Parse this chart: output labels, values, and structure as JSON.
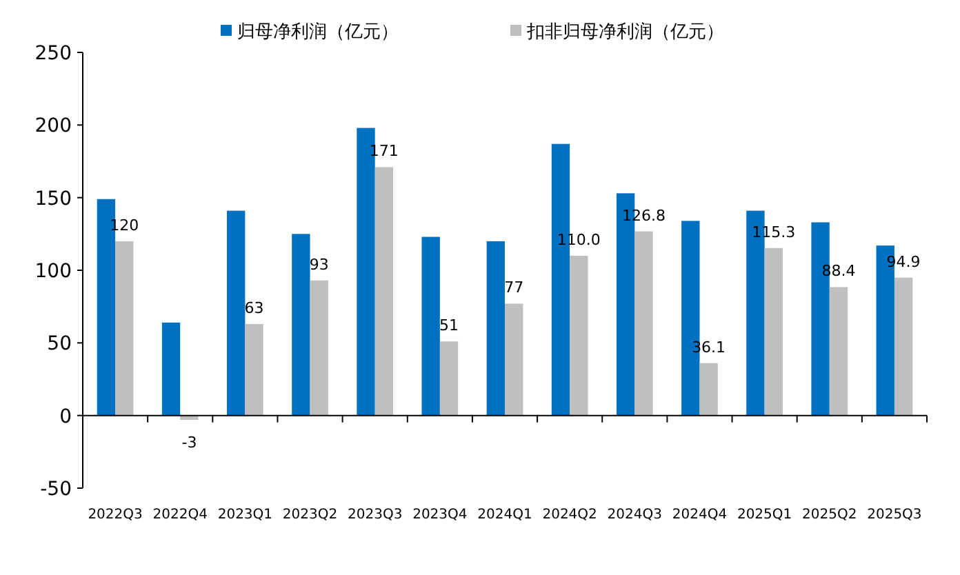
{
  "chart_data": {
    "type": "bar",
    "categories": [
      "2022Q3",
      "2022Q4",
      "2023Q1",
      "2023Q2",
      "2023Q3",
      "2023Q4",
      "2024Q1",
      "2024Q2",
      "2024Q3",
      "2024Q4",
      "2025Q1",
      "2025Q2",
      "2025Q3"
    ],
    "series": [
      {
        "name": "归母净利润（亿元）",
        "color": "#0070c0",
        "values": [
          149,
          64,
          141,
          125,
          198,
          123,
          120,
          187,
          153,
          134,
          141,
          133,
          117
        ]
      },
      {
        "name": "扣非归母净利润（亿元）",
        "color": "#bfbfbf",
        "values": [
          120,
          -3,
          63,
          93,
          171,
          51,
          77,
          110.0,
          126.8,
          36.1,
          115.3,
          88.4,
          94.9
        ],
        "value_labels": [
          "120",
          "-3",
          "63",
          "93",
          "171",
          "51",
          "77",
          "110.0",
          "126.8",
          "36.1",
          "115.3",
          "88.4",
          "94.9"
        ]
      }
    ],
    "ylim": [
      -50,
      250
    ],
    "yticks": [
      -50,
      0,
      50,
      100,
      150,
      200,
      250
    ],
    "legend": "top"
  }
}
